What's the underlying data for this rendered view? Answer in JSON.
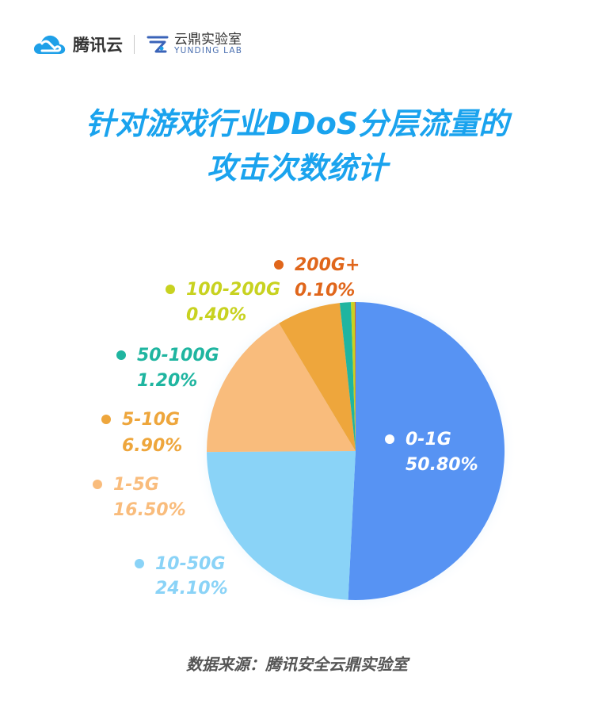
{
  "header": {
    "brand_name": "腾讯云",
    "lab_name": "云鼎实验室",
    "lab_name_en": "YUNDING LAB"
  },
  "title_line1": "针对游戏行业DDoS分层流量的",
  "title_line2": "攻击次数统计",
  "source": "数据来源：腾讯安全云鼎实验室",
  "chart_data": {
    "type": "pie",
    "title": "针对游戏行业DDoS分层流量的攻击次数统计",
    "slices": [
      {
        "label": "0-1G",
        "value": 50.8,
        "value_label": "50.80%",
        "color": "#5793f3"
      },
      {
        "label": "10-50G",
        "value": 24.1,
        "value_label": "24.10%",
        "color": "#8ad3f7"
      },
      {
        "label": "1-5G",
        "value": 16.5,
        "value_label": "16.50%",
        "color": "#f9bc7c"
      },
      {
        "label": "5-10G",
        "value": 6.9,
        "value_label": "6.90%",
        "color": "#eea63c"
      },
      {
        "label": "50-100G",
        "value": 1.2,
        "value_label": "1.20%",
        "color": "#1fb5a0"
      },
      {
        "label": "100-200G",
        "value": 0.4,
        "value_label": "0.40%",
        "color": "#c8d220"
      },
      {
        "label": "200G+",
        "value": 0.1,
        "value_label": "0.10%",
        "color": "#e0661b"
      }
    ]
  }
}
